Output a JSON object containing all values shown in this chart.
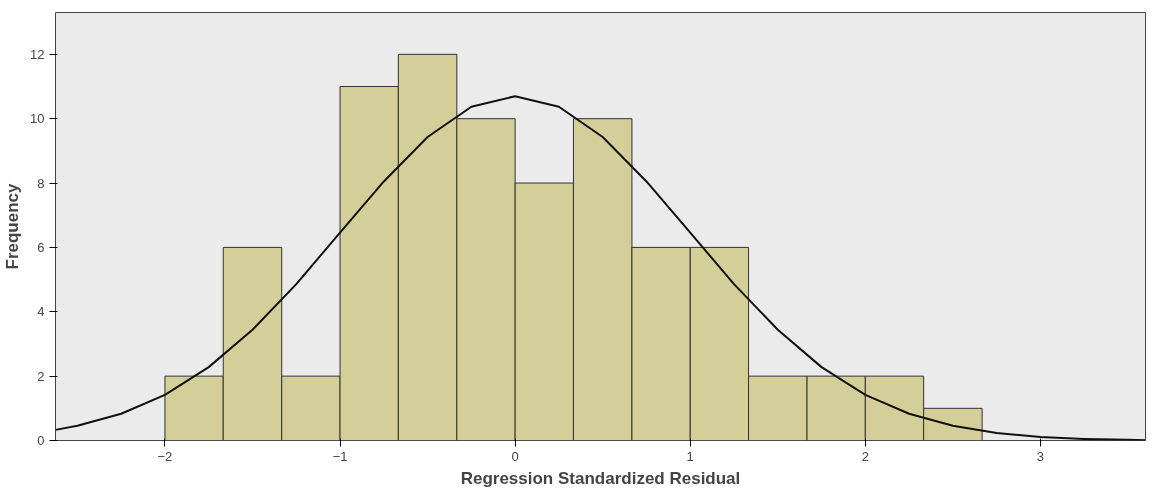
{
  "chart_data": {
    "type": "histogram",
    "xlabel": "Regression Standardized Residual",
    "ylabel": "Frequency",
    "bins": [
      -2,
      -1.667,
      -1.333,
      -1,
      -0.667,
      -0.333,
      0,
      0.333,
      0.667,
      1,
      1.333,
      1.667,
      2,
      2.333,
      2.667
    ],
    "values": [
      2,
      6,
      2,
      11,
      12,
      10,
      8,
      10,
      6,
      6,
      2,
      2,
      2,
      1
    ],
    "color": "#d4cf98",
    "series": [
      {
        "type": "line",
        "color": "#111111",
        "x": [
          -2.625,
          -2.5,
          -2.25,
          -2,
          -1.75,
          -1.5,
          -1.25,
          -1,
          -0.75,
          -0.5,
          -0.25,
          0,
          0.25,
          0.5,
          0.75,
          1,
          1.25,
          1.5,
          1.75,
          2,
          2.25,
          2.5,
          2.75,
          3,
          3.25,
          3.5,
          3.6
        ],
        "values": [
          0.33,
          0.46,
          0.83,
          1.42,
          2.28,
          3.44,
          4.86,
          6.46,
          8.05,
          9.43,
          10.37,
          10.7,
          10.37,
          9.43,
          8.05,
          6.46,
          4.86,
          3.44,
          2.28,
          1.42,
          0.83,
          0.46,
          0.23,
          0.11,
          0.05,
          0.02,
          0.01
        ]
      }
    ],
    "xlim": [
      -2.625,
      3.6
    ],
    "ylim": [
      0,
      13.3
    ],
    "xticks": [
      -2,
      -1,
      0,
      1,
      2,
      3
    ],
    "yticks": [
      0,
      2,
      4,
      6,
      8,
      10,
      12
    ],
    "grid": false
  }
}
